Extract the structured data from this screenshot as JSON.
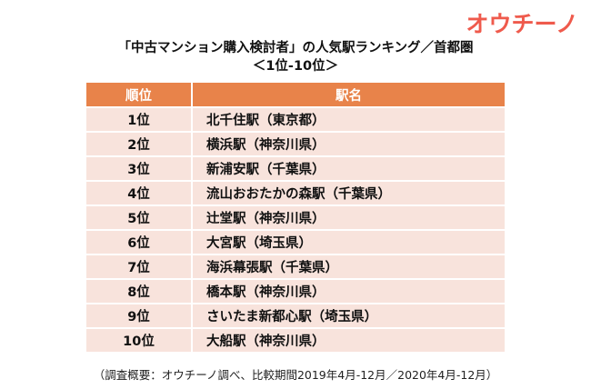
{
  "logo": {
    "text": "オウチーノ",
    "color": "#ef5a4c"
  },
  "title": "「中古マンション購入検討者」の人気駅ランキング／首都圏",
  "subtitle": "＜1位-10位＞",
  "table": {
    "headers": {
      "rank": "順位",
      "station": "駅名"
    },
    "header_color": "#e8834a",
    "row_color": "#f8e3dc",
    "rows": [
      {
        "rank": "1位",
        "station": "北千住駅（東京都）"
      },
      {
        "rank": "2位",
        "station": "横浜駅（神奈川県）"
      },
      {
        "rank": "3位",
        "station": "新浦安駅（千葉県）"
      },
      {
        "rank": "4位",
        "station": "流山おおたかの森駅（千葉県）"
      },
      {
        "rank": "5位",
        "station": "辻堂駅（神奈川県）"
      },
      {
        "rank": "6位",
        "station": "大宮駅（埼玉県）"
      },
      {
        "rank": "7位",
        "station": "海浜幕張駅（千葉県）"
      },
      {
        "rank": "8位",
        "station": "橋本駅（神奈川県）"
      },
      {
        "rank": "9位",
        "station": "さいたま新都心駅（埼玉県）"
      },
      {
        "rank": "10位",
        "station": "大船駅（神奈川県）"
      }
    ]
  },
  "footnote": "（調査概要：オウチーノ調べ、比較期間2019年4月-12月／2020年4月-12月）"
}
